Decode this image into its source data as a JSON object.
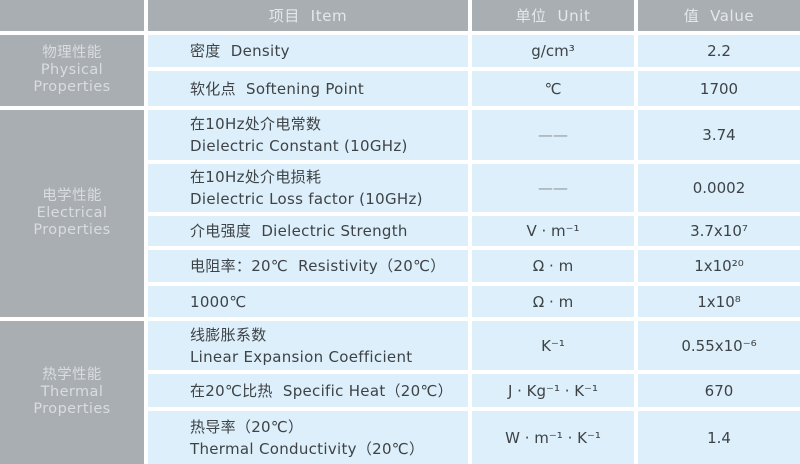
{
  "colors": {
    "header_bg": "#a9aeb2",
    "category_bg": "#a9aeb2",
    "row_bg": "#ddeffa",
    "gap": "#ffffff",
    "header_text": "#e4e8ea",
    "cell_text": "#3e4347",
    "dash_text": "#8f969b"
  },
  "chart_data": {
    "type": "table",
    "title": "",
    "layout": {
      "grid": "on",
      "columns": 4,
      "category_column": "left",
      "header_row": "top"
    },
    "header": {
      "item": "项目  Item",
      "unit": "单位  Unit",
      "value": "值  Value"
    },
    "sections": [
      {
        "label_lines": [
          "物理性能",
          "Physical",
          "Properties"
        ],
        "rows": [
          {
            "item_lines": [
              "密度  Density"
            ],
            "unit": "g/cm³",
            "value": "2.2"
          },
          {
            "item_lines": [
              "软化点  Softening Point"
            ],
            "unit": "℃",
            "value": "1700"
          }
        ]
      },
      {
        "label_lines": [
          "电学性能",
          "Electrical",
          "Properties"
        ],
        "rows": [
          {
            "item_lines": [
              "在10Hz处介电常数",
              "Dielectric Constant (10GHz)"
            ],
            "unit": "——",
            "value": "3.74"
          },
          {
            "item_lines": [
              "在10Hz处介电损耗",
              "Dielectric Loss factor (10GHz)"
            ],
            "unit": "——",
            "value": "0.0002"
          },
          {
            "item_lines": [
              "介电强度  Dielectric Strength"
            ],
            "unit": "V · m⁻¹",
            "value": "3.7x10⁷"
          },
          {
            "item_lines": [
              "电阻率：20℃  Resistivity（20℃）"
            ],
            "unit": "Ω · m",
            "value": "1x10²⁰"
          },
          {
            "item_lines": [
              "1000℃"
            ],
            "unit": "Ω · m",
            "value": "1x10⁸"
          }
        ]
      },
      {
        "label_lines": [
          "热学性能",
          "Thermal",
          "Properties"
        ],
        "rows": [
          {
            "item_lines": [
              "线膨胀系数",
              "Linear Expansion Coefficient"
            ],
            "unit": "K⁻¹",
            "value": "0.55x10⁻⁶"
          },
          {
            "item_lines": [
              "在20℃比热  Specific Heat（20℃）"
            ],
            "unit": "J · Kg⁻¹ · K⁻¹",
            "value": "670"
          },
          {
            "item_lines": [
              "热导率（20℃）",
              "Thermal Conductivity（20℃）"
            ],
            "unit": "W · m⁻¹ · K⁻¹",
            "value": "1.4"
          }
        ]
      }
    ]
  }
}
